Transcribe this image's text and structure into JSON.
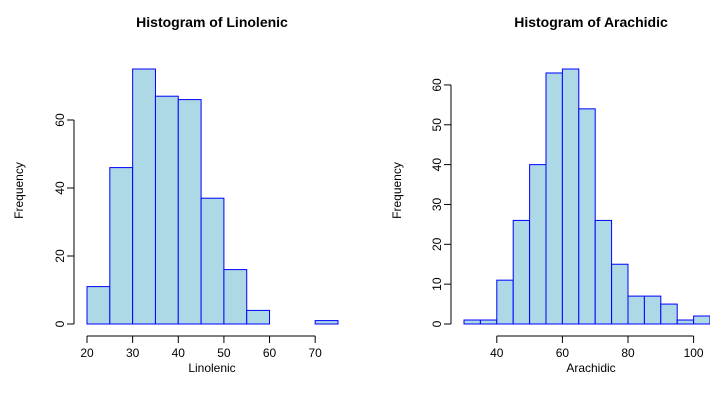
{
  "chart_data": [
    {
      "type": "bar",
      "title": "Histogram of Linolenic",
      "xlabel": "Linolenic",
      "ylabel": "Frequency",
      "bin_edges": [
        20,
        25,
        30,
        35,
        40,
        45,
        50,
        55,
        60,
        65,
        70,
        75
      ],
      "values": [
        11,
        46,
        75,
        67,
        66,
        37,
        16,
        4,
        0,
        0,
        1
      ],
      "xlim": [
        20,
        75
      ],
      "ylim": [
        0,
        75
      ],
      "xticks": [
        20,
        30,
        40,
        50,
        60,
        70
      ],
      "yticks": [
        0,
        20,
        40,
        60
      ],
      "grid": false,
      "colors": {
        "fill": "#add8e6",
        "stroke": "#0000ff"
      }
    },
    {
      "type": "bar",
      "title": "Histogram of Arachidic",
      "xlabel": "Arachidic",
      "ylabel": "Frequency",
      "bin_edges": [
        30,
        35,
        40,
        45,
        50,
        55,
        60,
        65,
        70,
        75,
        80,
        85,
        90,
        95,
        100,
        105
      ],
      "values": [
        1,
        1,
        11,
        26,
        40,
        63,
        64,
        54,
        26,
        15,
        7,
        7,
        5,
        1,
        2
      ],
      "xlim": [
        30,
        105
      ],
      "ylim": [
        0,
        64
      ],
      "xticks": [
        40,
        60,
        80,
        100
      ],
      "yticks": [
        0,
        10,
        20,
        30,
        40,
        50,
        60
      ],
      "grid": false,
      "colors": {
        "fill": "#add8e6",
        "stroke": "#0000ff"
      }
    }
  ]
}
